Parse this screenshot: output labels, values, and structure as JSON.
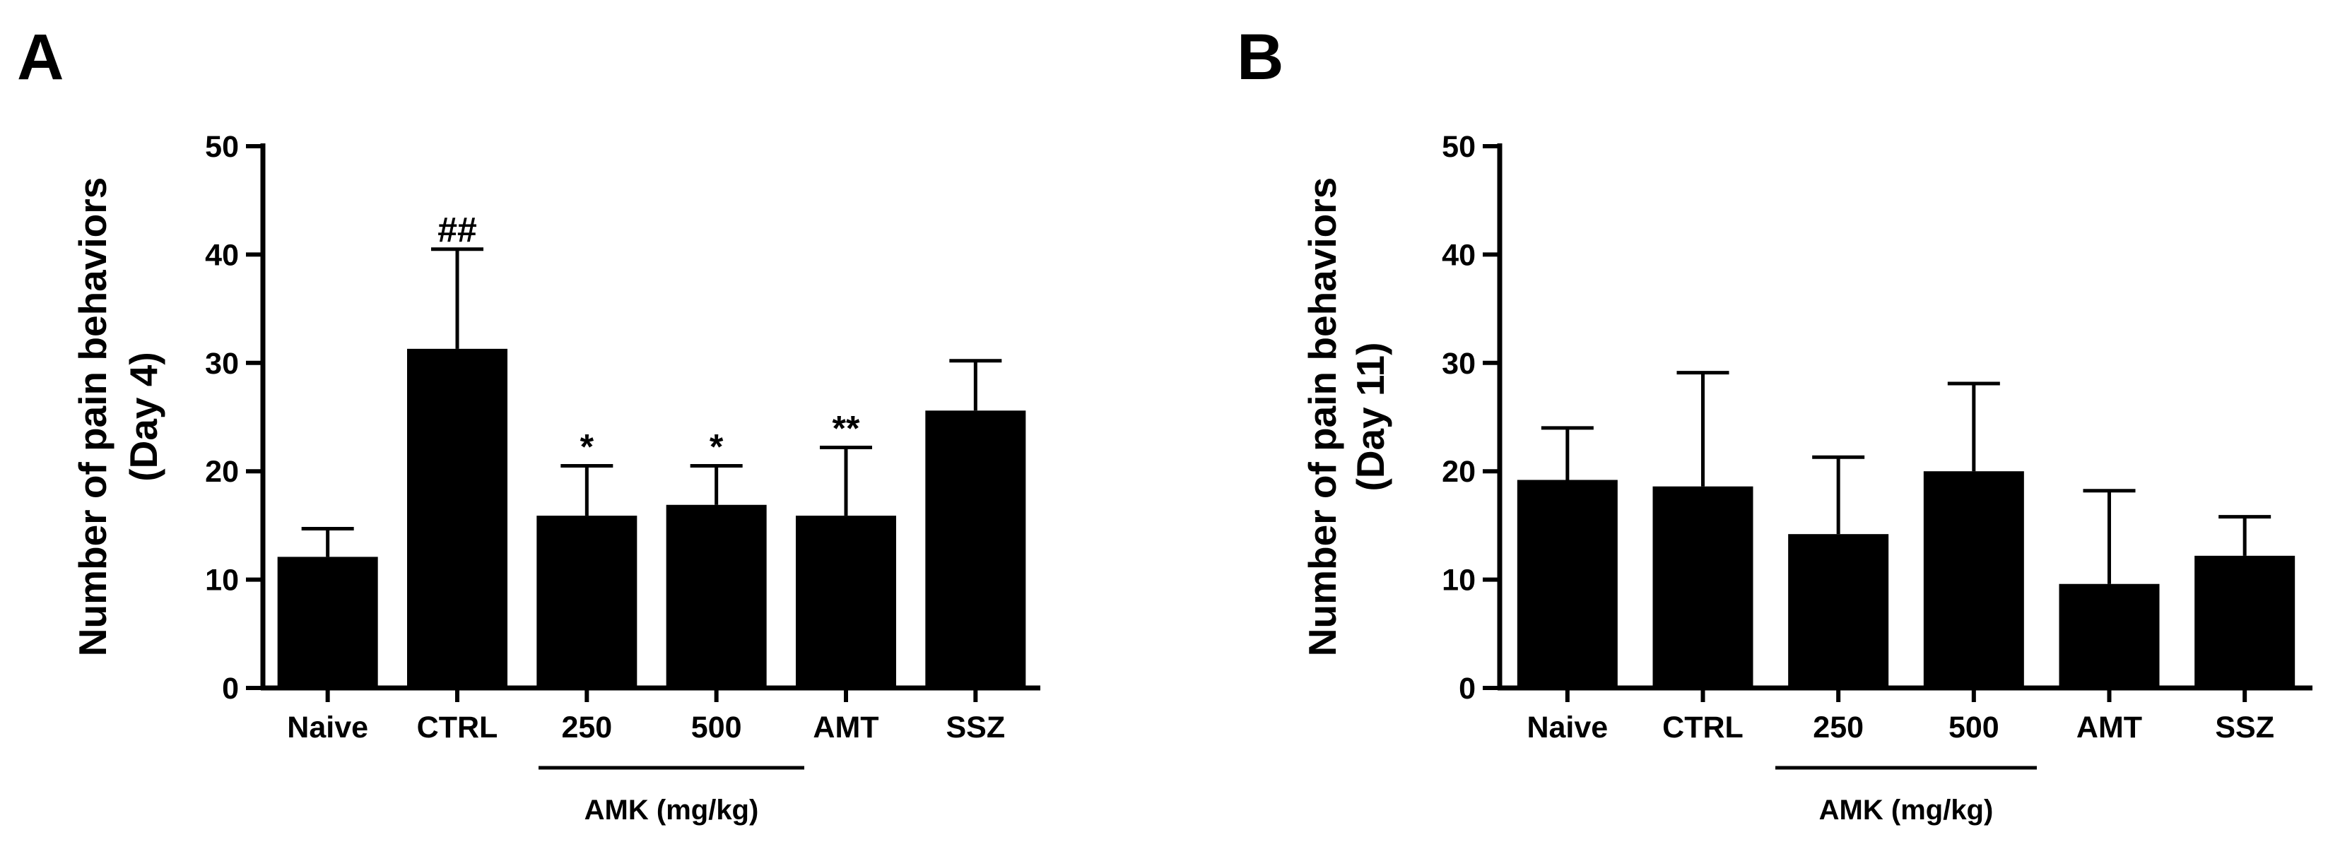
{
  "colors": {
    "bar": "#000000",
    "axis": "#000000",
    "background": "#ffffff"
  },
  "chart_data": [
    {
      "panel": "A",
      "type": "bar",
      "ylabel_line1": "Number of pain behaviors",
      "ylabel_line2": "(Day 4)",
      "ylim": [
        0,
        50
      ],
      "yticks": [
        0,
        10,
        20,
        30,
        40,
        50
      ],
      "categories": [
        "Naive",
        "CTRL",
        "250",
        "500",
        "AMT",
        "SSZ"
      ],
      "values": [
        12.1,
        31.3,
        15.9,
        16.9,
        15.9,
        25.6
      ],
      "errors": [
        2.6,
        9.2,
        4.6,
        3.6,
        6.3,
        4.6
      ],
      "significance": [
        "",
        "##",
        "*",
        "*",
        "**",
        ""
      ],
      "group_label": "AMK (mg/kg)",
      "group_span": [
        "250",
        "500"
      ]
    },
    {
      "panel": "B",
      "type": "bar",
      "ylabel_line1": "Number of pain behaviors",
      "ylabel_line2": "(Day 11)",
      "ylim": [
        0,
        50
      ],
      "yticks": [
        0,
        10,
        20,
        30,
        40,
        50
      ],
      "categories": [
        "Naive",
        "CTRL",
        "250",
        "500",
        "AMT",
        "SSZ"
      ],
      "values": [
        19.2,
        18.6,
        14.2,
        20.0,
        9.6,
        12.2
      ],
      "errors": [
        4.8,
        10.5,
        7.1,
        8.1,
        8.6,
        3.6
      ],
      "significance": [
        "",
        "",
        "",
        "",
        "",
        ""
      ],
      "group_label": "AMK (mg/kg)",
      "group_span": [
        "250",
        "500"
      ]
    }
  ]
}
